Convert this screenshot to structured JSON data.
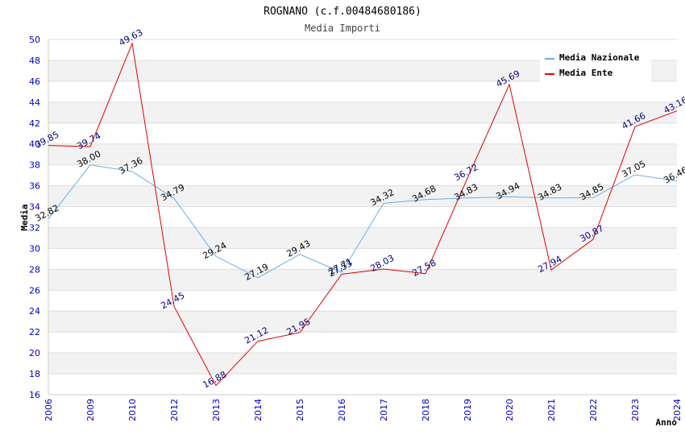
{
  "chart_data": {
    "type": "line",
    "title": "ROGNANO (c.f.00484680186)",
    "subtitle": "Media Importi",
    "xlabel": "Anno",
    "ylabel": "Media",
    "ylim": [
      16,
      50
    ],
    "ytick_step": 2,
    "categories": [
      "2006",
      "2009",
      "2010",
      "2012",
      "2013",
      "2014",
      "2015",
      "2016",
      "2017",
      "2018",
      "2019",
      "2020",
      "2021",
      "2022",
      "2023",
      "2024"
    ],
    "series": [
      {
        "name": "Media Nazionale",
        "color": "#6aaee8",
        "values": [
          32.82,
          38.0,
          37.36,
          34.79,
          29.24,
          27.19,
          29.43,
          27.71,
          34.32,
          34.68,
          34.83,
          34.94,
          34.83,
          34.85,
          37.05,
          36.46
        ],
        "labels": [
          "32.82",
          "38.00",
          "37.36",
          "34.79",
          "29.24",
          "27.19",
          "29.43",
          "27.71",
          "34.32",
          "34.68",
          "34.83",
          "34.94",
          "34.83",
          "34.85",
          "37.05",
          "36.46"
        ]
      },
      {
        "name": "Media Ente",
        "color": "#e00000",
        "values": [
          39.85,
          39.74,
          49.63,
          24.45,
          16.88,
          21.12,
          21.95,
          27.53,
          28.03,
          27.58,
          36.72,
          45.69,
          27.94,
          30.87,
          41.66,
          43.16
        ],
        "labels": [
          "39.85",
          "39.74",
          "49.63",
          "24.45",
          "16.88",
          "21.12",
          "21.95",
          "27.53",
          "28.03",
          "27.58",
          "36.72",
          "45.69",
          "27.94",
          "30.87",
          "41.66",
          "43.16"
        ]
      }
    ],
    "legend": "top-right",
    "grid": "horizontal bands"
  }
}
